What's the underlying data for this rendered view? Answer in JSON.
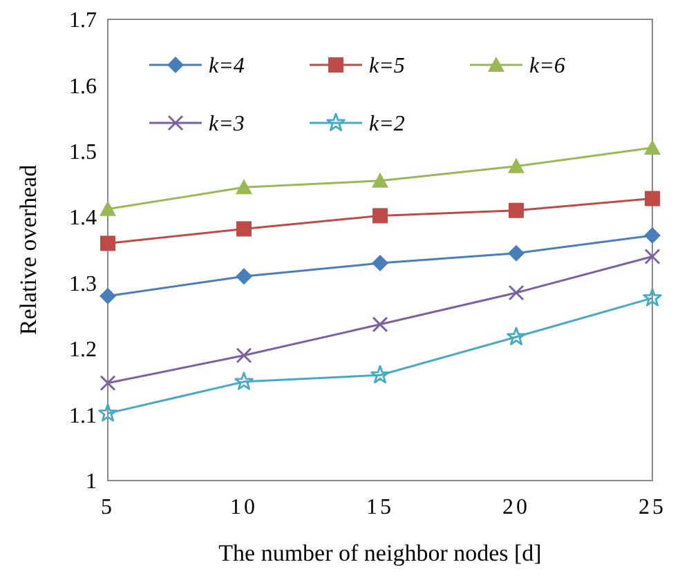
{
  "chart_data": {
    "type": "line",
    "xlabel": "The number of neighbor nodes [d]",
    "ylabel": "Relative overhead",
    "x": [
      5,
      10,
      15,
      20,
      25
    ],
    "xlim": [
      5,
      25
    ],
    "xticks": [
      5,
      10,
      15,
      20,
      25
    ],
    "ylim": [
      1,
      1.7
    ],
    "yticks": [
      1,
      1.1,
      1.2,
      1.3,
      1.4,
      1.5,
      1.6,
      1.7
    ],
    "grid": false,
    "legend": "top",
    "line_style": "solid",
    "series": [
      {
        "name": "k=4",
        "color": "#4a7ebb",
        "marker": "diamond",
        "values": [
          1.28,
          1.31,
          1.33,
          1.345,
          1.372
        ]
      },
      {
        "name": "k=5",
        "color": "#be4b48",
        "marker": "square",
        "values": [
          1.36,
          1.382,
          1.402,
          1.41,
          1.428
        ]
      },
      {
        "name": "k=6",
        "color": "#98b954",
        "marker": "triangle",
        "values": [
          1.412,
          1.445,
          1.455,
          1.477,
          1.505
        ]
      },
      {
        "name": "k=3",
        "color": "#7d60a0",
        "marker": "cross",
        "values": [
          1.148,
          1.19,
          1.237,
          1.285,
          1.34
        ]
      },
      {
        "name": "k=2",
        "color": "#46aac5",
        "marker": "star",
        "values": [
          1.102,
          1.15,
          1.16,
          1.218,
          1.277
        ]
      }
    ]
  }
}
